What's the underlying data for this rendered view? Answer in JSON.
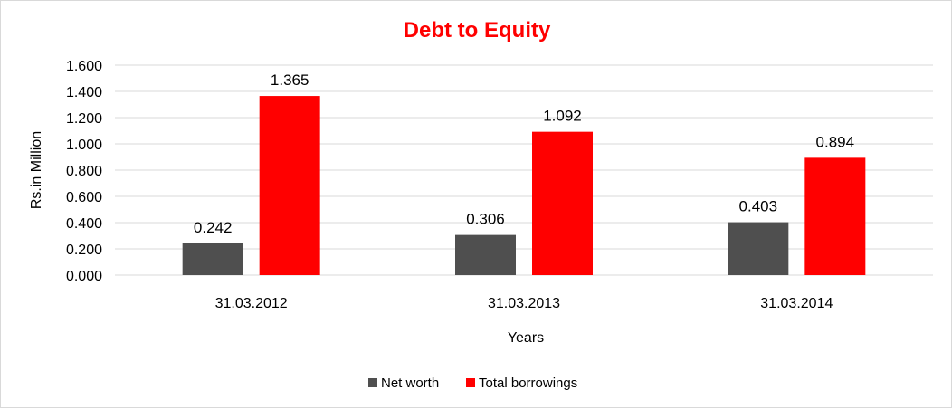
{
  "chart_data": {
    "type": "bar",
    "title": "Debt to Equity",
    "xlabel": "Years",
    "ylabel": "Rs.in Million",
    "categories": [
      "31.03.2012",
      "31.03.2013",
      "31.03.2014"
    ],
    "series": [
      {
        "name": "Net worth",
        "values": [
          0.242,
          0.306,
          0.403
        ],
        "labels": [
          "0.242",
          "0.306",
          "0.403"
        ],
        "color": "#4f4f4f"
      },
      {
        "name": "Total borrowings",
        "values": [
          1.365,
          1.092,
          0.894
        ],
        "labels": [
          "1.365",
          "1.092",
          "0.894"
        ],
        "color": "#ff0000"
      }
    ],
    "yticks": [
      "0.000",
      "0.200",
      "0.400",
      "0.600",
      "0.800",
      "1.000",
      "1.200",
      "1.400",
      "1.600"
    ],
    "ylim": [
      0,
      1.6
    ],
    "grid": true,
    "legend": "bottom"
  },
  "colors": {
    "title": "#ff0000",
    "gridline": "#d9d9d9"
  }
}
